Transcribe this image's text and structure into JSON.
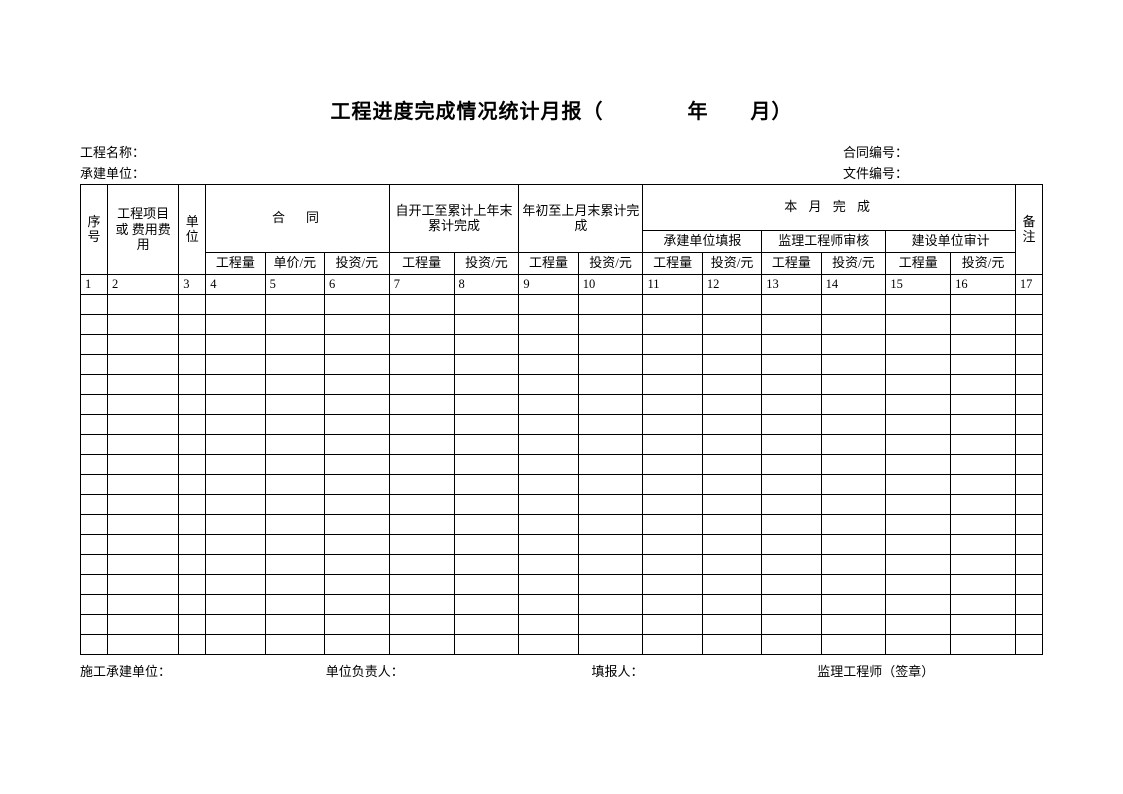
{
  "title": "工程进度完成情况统计月报（　　　　年　　月）",
  "meta": {
    "project_name_label": "工程名称：",
    "contractor_label": "承建单位：",
    "contract_no_label": "合同编号：",
    "doc_no_label": "文件编号："
  },
  "headers": {
    "seq": "序号",
    "project_item": "工程项目或 费用费用",
    "unit": "单位",
    "contract": "合　同",
    "since_start": "自开工至累计上年末累计完成",
    "ytd_last_month": "年初至上月末累计完成",
    "this_month": "本 月 完 成",
    "remark": "备注",
    "sub_contractor_fill": "承建单位填报",
    "sub_supervisor_check": "监理工程师审核",
    "sub_owner_audit": "建设单位审计",
    "qty": "工程量",
    "price": "单价/元",
    "invest": "投资/元"
  },
  "column_numbers": [
    "1",
    "2",
    "3",
    "4",
    "5",
    "6",
    "7",
    "8",
    "9",
    "10",
    "11",
    "12",
    "13",
    "14",
    "15",
    "16",
    "17"
  ],
  "empty_row_count": 18,
  "footer": {
    "f1": "施工承建单位：",
    "f2": "单位负责人：",
    "f3": "填报人：",
    "f4": "监理工程师（签章）"
  },
  "col_widths": {
    "c1": 25,
    "c2": 66,
    "c3": 25,
    "c4": 55,
    "c5": 55,
    "c6": 60,
    "c7": 60,
    "c8": 60,
    "c9": 55,
    "c10": 60,
    "c11": 55,
    "c12": 55,
    "c13": 55,
    "c14": 60,
    "c15": 60,
    "c16": 60,
    "c17": 25
  }
}
